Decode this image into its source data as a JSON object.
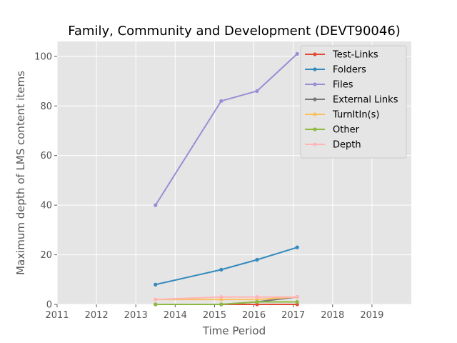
{
  "chart_data": {
    "type": "line",
    "title": "Family, Community and Development (DEVT90046)",
    "xlabel": "Time Period",
    "ylabel": "Maximum depth of LMS content items",
    "xlim": [
      2011,
      2020
    ],
    "ylim": [
      0,
      106
    ],
    "x_ticks": [
      "2011",
      "2012",
      "2013",
      "2014",
      "2015",
      "2016",
      "2017",
      "2018",
      "2019"
    ],
    "y_ticks": [
      "0",
      "20",
      "40",
      "60",
      "80",
      "100"
    ],
    "grid": true,
    "legend_position": "upper-right",
    "x": [
      2013.5,
      2015.17,
      2016.08,
      2017.1
    ],
    "series": [
      {
        "name": "Test-Links",
        "color": "#E24A33",
        "values": [
          0,
          0,
          0,
          0
        ]
      },
      {
        "name": "Folders",
        "color": "#348ABD",
        "values": [
          8,
          14,
          18,
          23
        ]
      },
      {
        "name": "Files",
        "color": "#988ED5",
        "values": [
          40,
          82,
          86,
          101
        ]
      },
      {
        "name": "External Links",
        "color": "#777777",
        "values": [
          0,
          0,
          1,
          3
        ]
      },
      {
        "name": "TurnItIn(s)",
        "color": "#FBC15E",
        "values": [
          2,
          2,
          2,
          3
        ]
      },
      {
        "name": "Other",
        "color": "#8EBA42",
        "values": [
          0,
          0,
          1,
          1
        ]
      },
      {
        "name": "Depth",
        "color": "#FFB5B8",
        "values": [
          2,
          3,
          3,
          3
        ]
      }
    ]
  }
}
